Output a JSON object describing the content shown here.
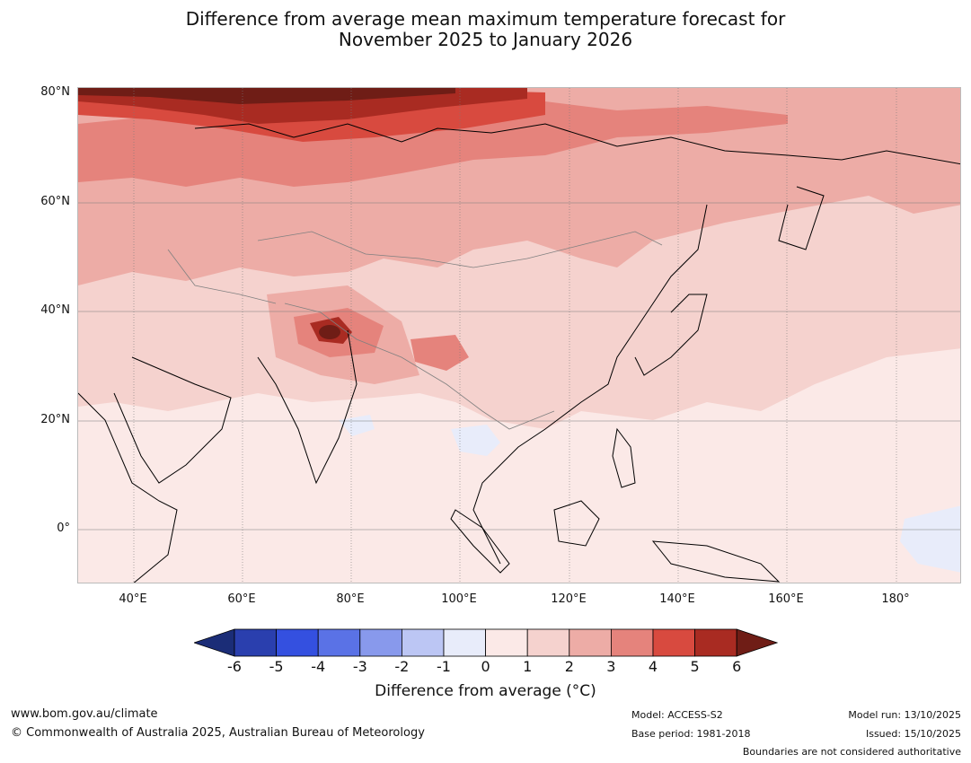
{
  "title_line1": "Difference from average mean maximum temperature forecast for",
  "title_line2": "November 2025 to January 2026",
  "lat_labels": [
    "80°N",
    "60°N",
    "40°N",
    "20°N",
    "0°"
  ],
  "lon_labels": [
    "40°E",
    "60°E",
    "80°E",
    "100°E",
    "120°E",
    "140°E",
    "160°E",
    "180°"
  ],
  "colorbar": {
    "ticks": [
      "-6",
      "-5",
      "-4",
      "-3",
      "-2",
      "-1",
      "0",
      "1",
      "2",
      "3",
      "4",
      "5",
      "6"
    ],
    "colors": [
      "#1b2d77",
      "#2a3fae",
      "#3450e0",
      "#5a72e6",
      "#8899ec",
      "#bcc6f4",
      "#e8ecfa",
      "#fbe9e7",
      "#f5d2ce",
      "#edaca6",
      "#e5837c",
      "#d84a3f",
      "#a92b22",
      "#6f1d16"
    ],
    "title": "Difference from average (°C)"
  },
  "footer": {
    "website": "www.bom.gov.au/climate",
    "copyright": "© Commonwealth of Australia 2025, Australian Bureau of Meteorology",
    "model": "Model: ACCESS-S2",
    "base_period": "Base period: 1981-2018",
    "model_run": "Model run: 13/10/2025",
    "issued": "Issued: 15/10/2025",
    "disclaimer": "Boundaries are not considered authoritative"
  }
}
